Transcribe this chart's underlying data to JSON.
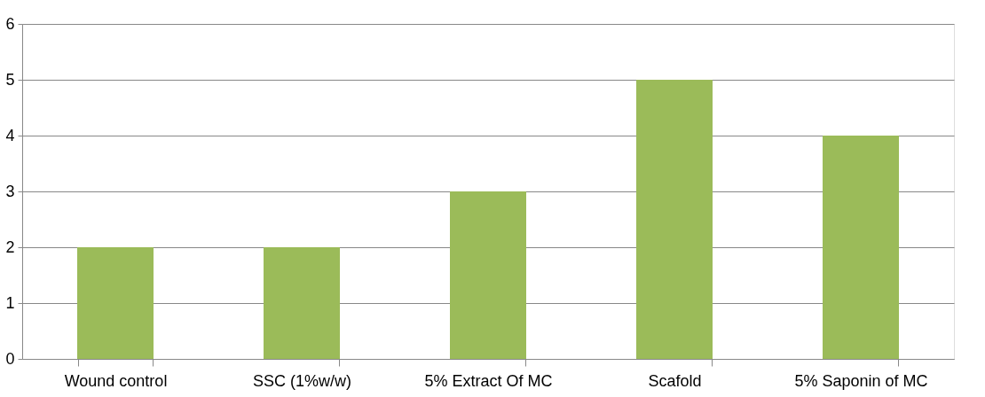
{
  "chart_data": {
    "type": "bar",
    "categories": [
      "Wound control",
      "SSC (1%w/w)",
      "5% Extract Of MC",
      "Scafold",
      "5% Saponin of MC"
    ],
    "values": [
      2,
      2,
      3,
      5,
      4
    ],
    "color": "#9bbb59",
    "ylim": [
      0,
      6
    ],
    "yticks": [
      0,
      1,
      2,
      3,
      4,
      5,
      6
    ],
    "grid": "y"
  }
}
